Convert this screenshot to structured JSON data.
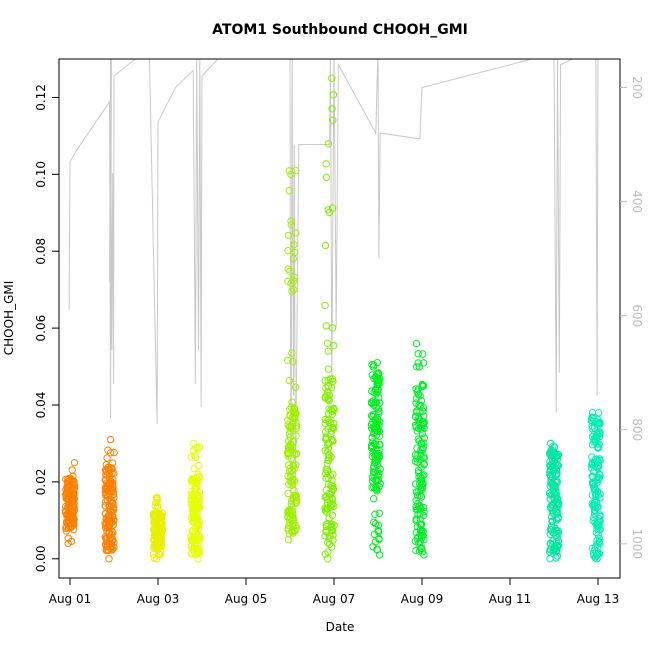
{
  "chart_data": {
    "type": "scatter",
    "title": "ATOM1 Southbound CHOOH_GMI",
    "xlabel": "Date",
    "ylabel": "CHOOH_GMI",
    "x_axis": {
      "range_days": [
        -0.25,
        12.5
      ],
      "ticks": [
        {
          "day": 0,
          "label": "Aug 01"
        },
        {
          "day": 2,
          "label": "Aug 03"
        },
        {
          "day": 4,
          "label": "Aug 05"
        },
        {
          "day": 6,
          "label": "Aug 07"
        },
        {
          "day": 8,
          "label": "Aug 09"
        },
        {
          "day": 10,
          "label": "Aug 11"
        },
        {
          "day": 12,
          "label": "Aug 13"
        }
      ]
    },
    "y_axis": {
      "range": [
        -0.005,
        0.13
      ],
      "ticks": [
        0.0,
        0.02,
        0.04,
        0.06,
        0.08,
        0.1,
        0.12
      ],
      "tick_labels": [
        "0.00",
        "0.02",
        "0.04",
        "0.06",
        "0.08",
        "0.10",
        "0.12"
      ]
    },
    "y2_axis": {
      "note": "pressure (hPa), reversed",
      "range": [
        1060,
        150
      ],
      "ticks": [
        200,
        400,
        600,
        800,
        1000
      ],
      "tick_labels": [
        "200",
        "400",
        "600",
        "800",
        "1000"
      ],
      "color": "#bdbdbd"
    },
    "marker": "open-circle",
    "series": [
      {
        "day": 0.0,
        "date": "Aug 01",
        "color": "#ff8000",
        "ymin": 0.004,
        "ymax": 0.025,
        "dense_min": 0.008,
        "dense_max": 0.021
      },
      {
        "day": 0.9,
        "date": "Aug 01",
        "color": "#ff8000",
        "ymin": 0.0,
        "ymax": 0.031,
        "dense_min": 0.002,
        "dense_max": 0.024
      },
      {
        "day": 2.0,
        "date": "Aug 03",
        "color": "#e6f000",
        "ymin": 0.0,
        "ymax": 0.016,
        "dense_min": 0.003,
        "dense_max": 0.012
      },
      {
        "day": 2.85,
        "date": "Aug 03",
        "color": "#e6ff00",
        "ymin": 0.0,
        "ymax": 0.03,
        "dense_min": 0.001,
        "dense_max": 0.022
      },
      {
        "day": 5.05,
        "date": "Aug 06",
        "color": "#a0f000",
        "ymin": 0.005,
        "ymax": 0.101,
        "dense_min": 0.006,
        "dense_max": 0.04
      },
      {
        "day": 5.9,
        "date": "Aug 06",
        "color": "#80f000",
        "ymin": 0.0,
        "ymax": 0.125,
        "dense_min": 0.001,
        "dense_max": 0.047
      },
      {
        "day": 6.95,
        "date": "Aug 08",
        "color": "#00f020",
        "ymin": 0.001,
        "ymax": 0.051,
        "dense_min": 0.018,
        "dense_max": 0.049
      },
      {
        "day": 7.95,
        "date": "Aug 09",
        "color": "#00f028",
        "ymin": 0.001,
        "ymax": 0.056,
        "dense_min": 0.002,
        "dense_max": 0.046
      },
      {
        "day": 11.0,
        "date": "Aug 12",
        "color": "#00e8a0",
        "ymin": 0.0,
        "ymax": 0.03,
        "dense_min": 0.0,
        "dense_max": 0.028
      },
      {
        "day": 11.95,
        "date": "Aug 13",
        "color": "#00f0b0",
        "ymin": 0.0,
        "ymax": 0.038,
        "dense_min": 0.0,
        "dense_max": 0.037
      }
    ],
    "pressure_trace": {
      "color": "#c8c8c8",
      "points": [
        [
          -0.02,
          590
        ],
        [
          0.0,
          330
        ],
        [
          0.15,
          310
        ],
        [
          0.9,
          225
        ],
        [
          0.92,
          780
        ],
        [
          0.94,
          130
        ],
        [
          0.9,
          540
        ],
        [
          0.92,
          150
        ],
        [
          0.95,
          660
        ],
        [
          0.97,
          350
        ],
        [
          0.99,
          720
        ],
        [
          1.0,
          180
        ],
        [
          1.8,
          130
        ],
        [
          1.98,
          790
        ],
        [
          2.0,
          260
        ],
        [
          2.4,
          200
        ],
        [
          2.8,
          170
        ],
        [
          2.85,
          720
        ],
        [
          2.88,
          140
        ],
        [
          2.92,
          660
        ],
        [
          2.95,
          130
        ],
        [
          2.98,
          760
        ],
        [
          3.0,
          180
        ],
        [
          3.6,
          130
        ],
        [
          5.0,
          140
        ],
        [
          5.02,
          1000
        ],
        [
          5.05,
          150
        ],
        [
          5.08,
          740
        ],
        [
          5.1,
          300
        ],
        [
          5.12,
          920
        ],
        [
          5.2,
          300
        ],
        [
          5.9,
          300
        ],
        [
          5.92,
          150
        ],
        [
          5.95,
          720
        ],
        [
          6.0,
          140
        ],
        [
          6.05,
          620
        ],
        [
          6.1,
          160
        ],
        [
          6.95,
          280
        ],
        [
          7.0,
          130
        ],
        [
          7.02,
          500
        ],
        [
          7.05,
          280
        ],
        [
          7.95,
          290
        ],
        [
          8.0,
          200
        ],
        [
          11.0,
          140
        ],
        [
          11.05,
          770
        ],
        [
          11.08,
          130
        ],
        [
          11.12,
          700
        ],
        [
          11.15,
          160
        ],
        [
          11.95,
          130
        ],
        [
          11.98,
          740
        ],
        [
          12.0,
          130
        ]
      ]
    }
  }
}
